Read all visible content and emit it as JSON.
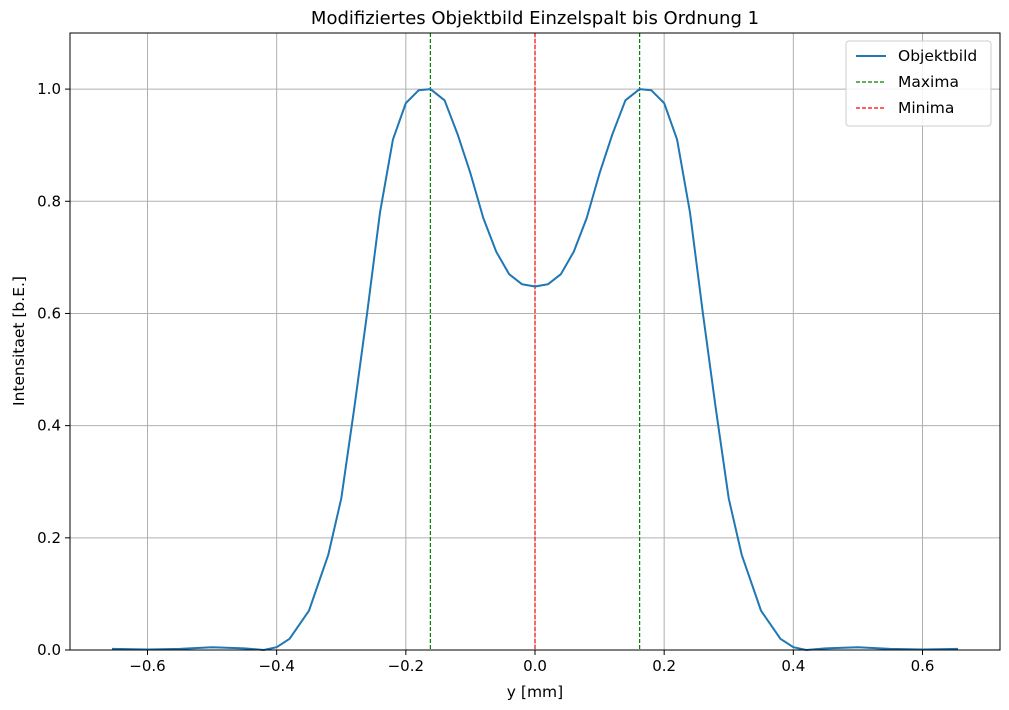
{
  "chart_data": {
    "type": "line",
    "title": "Modifiziertes Objektbild Einzelspalt bis Ordnung 1",
    "xlabel": "y [mm]",
    "ylabel": "Intensitaet [b.E.]",
    "xlim": [
      -0.72,
      0.72
    ],
    "ylim": [
      0.0,
      1.1
    ],
    "xticks": [
      -0.6,
      -0.4,
      -0.2,
      0.0,
      0.2,
      0.4,
      0.6
    ],
    "xtick_labels": [
      "−0.6",
      "−0.4",
      "−0.2",
      "0.0",
      "0.2",
      "0.4",
      "0.6"
    ],
    "yticks": [
      0.0,
      0.2,
      0.4,
      0.6,
      0.8,
      1.0
    ],
    "ytick_labels": [
      "0.0",
      "0.2",
      "0.4",
      "0.6",
      "0.8",
      "1.0"
    ],
    "grid": true,
    "legend_position": "top-right",
    "series": [
      {
        "name": "Objektbild",
        "color": "#1f77b4",
        "style": "solid",
        "x": [
          -0.655,
          -0.6,
          -0.55,
          -0.5,
          -0.45,
          -0.42,
          -0.4,
          -0.38,
          -0.35,
          -0.32,
          -0.3,
          -0.28,
          -0.26,
          -0.24,
          -0.22,
          -0.2,
          -0.18,
          -0.162,
          -0.14,
          -0.12,
          -0.1,
          -0.08,
          -0.06,
          -0.04,
          -0.02,
          0.0,
          0.02,
          0.04,
          0.06,
          0.08,
          0.1,
          0.12,
          0.14,
          0.162,
          0.18,
          0.2,
          0.22,
          0.24,
          0.26,
          0.28,
          0.3,
          0.32,
          0.35,
          0.38,
          0.4,
          0.42,
          0.45,
          0.5,
          0.55,
          0.6,
          0.655
        ],
        "y": [
          0.002,
          0.001,
          0.002,
          0.005,
          0.003,
          0.0,
          0.005,
          0.02,
          0.07,
          0.17,
          0.27,
          0.43,
          0.6,
          0.78,
          0.91,
          0.975,
          0.998,
          1.0,
          0.98,
          0.92,
          0.85,
          0.77,
          0.71,
          0.67,
          0.652,
          0.648,
          0.652,
          0.67,
          0.71,
          0.77,
          0.85,
          0.92,
          0.98,
          1.0,
          0.998,
          0.975,
          0.91,
          0.78,
          0.6,
          0.43,
          0.27,
          0.17,
          0.07,
          0.02,
          0.005,
          0.0,
          0.003,
          0.005,
          0.002,
          0.001,
          0.002
        ]
      },
      {
        "name": "Maxima",
        "color": "#008000",
        "style": "dashed",
        "x": [
          -0.162,
          0.162
        ]
      },
      {
        "name": "Minima",
        "color": "#ff0000",
        "style": "dashed",
        "x": [
          0.0
        ]
      }
    ]
  }
}
